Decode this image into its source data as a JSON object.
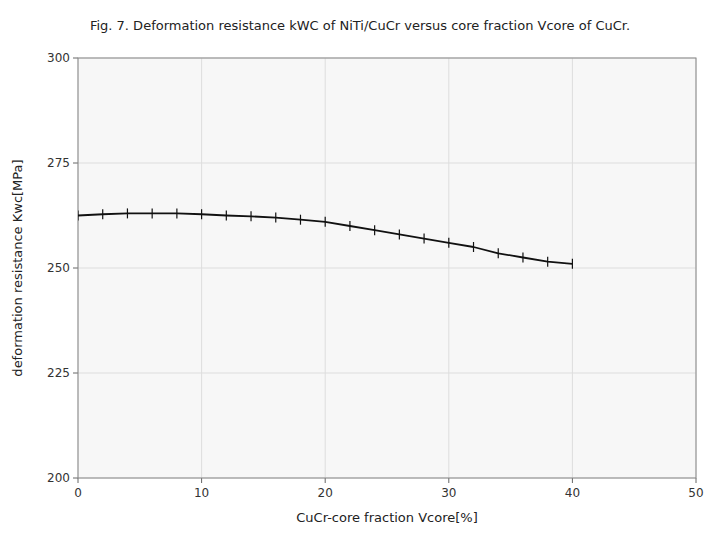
{
  "chart_data": {
    "type": "line",
    "title": "Fig. 7. Deformation resistance kWC of NiTi/CuCr versus core fraction Vcore of CuCr.",
    "x_label": "CuCr-core fraction Vcore[%]",
    "y_label": "deformation resistance Kwc[MPa]",
    "x": [
      0,
      2,
      4,
      6,
      8,
      10,
      12,
      14,
      16,
      18,
      20,
      22,
      24,
      26,
      28,
      30,
      32,
      34,
      36,
      38,
      40
    ],
    "values": [
      262.5,
      262.8,
      263.0,
      263.0,
      263.0,
      262.8,
      262.5,
      262.3,
      262.0,
      261.5,
      261.0,
      260.0,
      259.0,
      258.0,
      257.0,
      256.0,
      255.0,
      253.5,
      252.5,
      251.5,
      251.0
    ],
    "color": "#111111",
    "line_style": "solid",
    "marker": "vline",
    "xlim": [
      0,
      50
    ],
    "ylim": [
      200,
      300
    ],
    "xticks": [
      0,
      10,
      20,
      30,
      40,
      50
    ],
    "yticks": [
      200,
      225,
      250,
      275,
      300
    ],
    "grid": true
  }
}
